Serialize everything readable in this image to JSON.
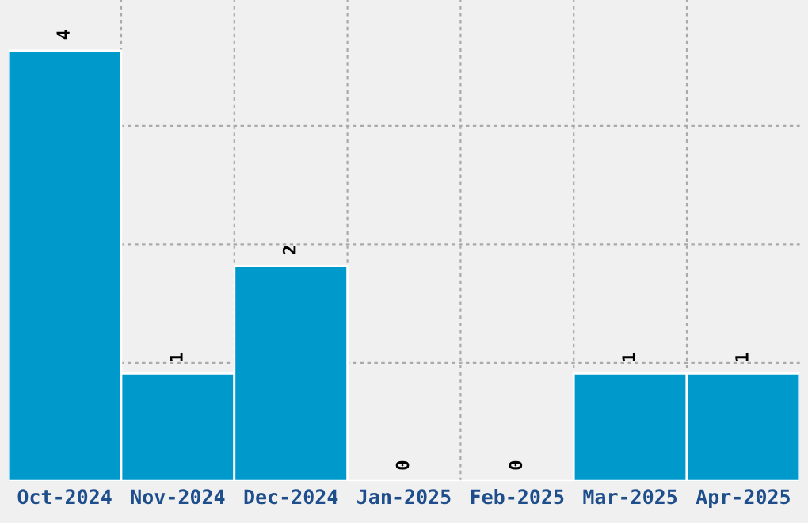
{
  "chart_data": {
    "type": "bar",
    "categories": [
      "Oct-2024",
      "Nov-2024",
      "Dec-2024",
      "Jan-2025",
      "Feb-2025",
      "Mar-2025",
      "Apr-2025"
    ],
    "values": [
      4,
      1,
      2,
      0,
      0,
      1,
      1
    ],
    "color": "#0099cc",
    "ylim": [
      0,
      4.47
    ],
    "yticks": [
      {
        "value": 1.1,
        "label": null
      },
      {
        "value": 2.2,
        "label": null
      },
      {
        "value": 3.3,
        "label": null
      }
    ],
    "tick_labels": "x",
    "data_labels": true,
    "grid": true,
    "legend": false
  }
}
